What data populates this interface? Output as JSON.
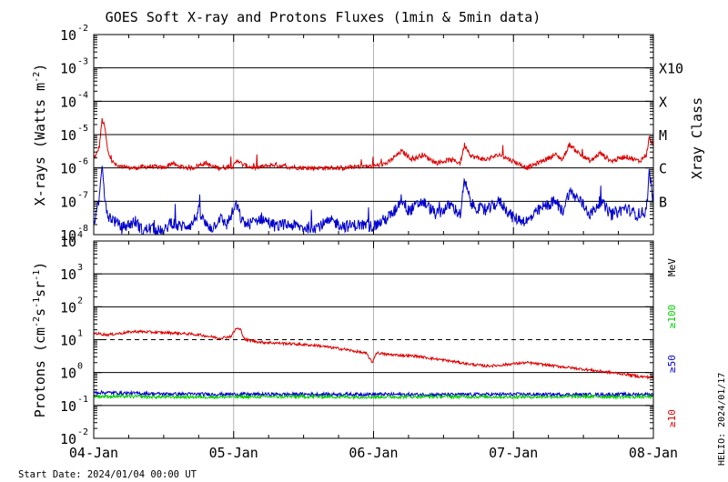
{
  "chart_data": {
    "type": "line",
    "title": "GOES Soft X-ray and Protons Fluxes   (1min & 5min data)",
    "start_date": "Start Date: 2024/01/04 00:00 UT",
    "helio": "HELIO: 2024/01/17",
    "x_ticks": [
      "04-Jan",
      "05-Jan",
      "06-Jan",
      "07-Jan",
      "08-Jan"
    ],
    "xlim_days": [
      0,
      4
    ],
    "panels": [
      {
        "id": "xray",
        "ylabel": "X-rays (Watts m⁻²)",
        "ylabel_main": "X-rays (Watts m",
        "ylabel_exp": "-2",
        "ylabel_close": ")",
        "scale": "log",
        "ylim_exp": [
          -8,
          -2
        ],
        "y_ticks_exp": [
          -8,
          -7,
          -6,
          -5,
          -4,
          -3,
          -2
        ],
        "right_labels": [
          {
            "text": "X10",
            "exp": -3
          },
          {
            "text": "X",
            "exp": -4
          },
          {
            "text": "M",
            "exp": -5
          },
          {
            "text": "C",
            "exp": -6
          },
          {
            "text": "B",
            "exp": -7
          }
        ],
        "right_axis_title": "Xray Class",
        "hlines_exp": [
          -3,
          -4,
          -5,
          -6,
          -7
        ],
        "series": [
          {
            "color": "#dd0000",
            "points": [
              [
                0,
                -5.7
              ],
              [
                0.02,
                -5.6
              ],
              [
                0.04,
                -5.35
              ],
              [
                0.06,
                -4.55
              ],
              [
                0.08,
                -4.8
              ],
              [
                0.1,
                -5.5
              ],
              [
                0.13,
                -5.8
              ],
              [
                0.17,
                -5.95
              ],
              [
                0.22,
                -6.0
              ],
              [
                0.3,
                -6.0
              ],
              [
                0.4,
                -5.95
              ],
              [
                0.5,
                -6.0
              ],
              [
                0.56,
                -5.85
              ],
              [
                0.6,
                -5.95
              ],
              [
                0.7,
                -6.0
              ],
              [
                0.8,
                -5.85
              ],
              [
                0.84,
                -5.95
              ],
              [
                0.9,
                -6.0
              ],
              [
                1.0,
                -5.95
              ],
              [
                1.03,
                -5.75
              ],
              [
                1.06,
                -5.9
              ],
              [
                1.15,
                -6.0
              ],
              [
                1.3,
                -5.9
              ],
              [
                1.35,
                -5.95
              ],
              [
                1.5,
                -6.0
              ],
              [
                1.65,
                -6.0
              ],
              [
                1.8,
                -6.0
              ],
              [
                1.9,
                -5.95
              ],
              [
                2.0,
                -5.95
              ],
              [
                2.1,
                -5.85
              ],
              [
                2.2,
                -5.5
              ],
              [
                2.28,
                -5.75
              ],
              [
                2.35,
                -5.6
              ],
              [
                2.45,
                -5.85
              ],
              [
                2.55,
                -5.75
              ],
              [
                2.62,
                -5.85
              ],
              [
                2.65,
                -5.3
              ],
              [
                2.7,
                -5.65
              ],
              [
                2.8,
                -5.75
              ],
              [
                2.9,
                -5.6
              ],
              [
                3.0,
                -5.8
              ],
              [
                3.1,
                -6.0
              ],
              [
                3.2,
                -5.8
              ],
              [
                3.3,
                -5.6
              ],
              [
                3.35,
                -5.75
              ],
              [
                3.4,
                -5.3
              ],
              [
                3.48,
                -5.6
              ],
              [
                3.55,
                -5.8
              ],
              [
                3.62,
                -5.55
              ],
              [
                3.7,
                -5.8
              ],
              [
                3.8,
                -5.65
              ],
              [
                3.9,
                -5.8
              ],
              [
                3.95,
                -5.6
              ],
              [
                3.97,
                -5.1
              ],
              [
                4.0,
                -5.35
              ]
            ]
          },
          {
            "color": "#0000cc",
            "points": [
              [
                0,
                -7.6
              ],
              [
                0.02,
                -7.4
              ],
              [
                0.04,
                -6.9
              ],
              [
                0.06,
                -5.8
              ],
              [
                0.08,
                -6.9
              ],
              [
                0.1,
                -7.4
              ],
              [
                0.15,
                -7.6
              ],
              [
                0.2,
                -7.8
              ],
              [
                0.25,
                -7.7
              ],
              [
                0.3,
                -7.6
              ],
              [
                0.35,
                -7.9
              ],
              [
                0.4,
                -7.8
              ],
              [
                0.45,
                -7.85
              ],
              [
                0.5,
                -7.95
              ],
              [
                0.55,
                -7.6
              ],
              [
                0.6,
                -7.75
              ],
              [
                0.7,
                -7.7
              ],
              [
                0.75,
                -7.3
              ],
              [
                0.8,
                -7.7
              ],
              [
                0.85,
                -7.8
              ],
              [
                0.9,
                -7.5
              ],
              [
                0.95,
                -7.7
              ],
              [
                1.02,
                -7.1
              ],
              [
                1.06,
                -7.6
              ],
              [
                1.1,
                -7.7
              ],
              [
                1.2,
                -7.5
              ],
              [
                1.3,
                -7.75
              ],
              [
                1.4,
                -7.7
              ],
              [
                1.5,
                -7.8
              ],
              [
                1.6,
                -7.75
              ],
              [
                1.7,
                -7.6
              ],
              [
                1.8,
                -7.75
              ],
              [
                1.9,
                -7.7
              ],
              [
                2.0,
                -7.75
              ],
              [
                2.1,
                -7.5
              ],
              [
                2.15,
                -7.3
              ],
              [
                2.2,
                -6.9
              ],
              [
                2.25,
                -7.3
              ],
              [
                2.35,
                -7.0
              ],
              [
                2.45,
                -7.4
              ],
              [
                2.55,
                -7.1
              ],
              [
                2.62,
                -7.4
              ],
              [
                2.65,
                -6.4
              ],
              [
                2.7,
                -7.1
              ],
              [
                2.8,
                -7.3
              ],
              [
                2.9,
                -7.0
              ],
              [
                3.0,
                -7.5
              ],
              [
                3.1,
                -7.6
              ],
              [
                3.2,
                -7.2
              ],
              [
                3.3,
                -7.0
              ],
              [
                3.35,
                -7.3
              ],
              [
                3.4,
                -6.7
              ],
              [
                3.48,
                -7.0
              ],
              [
                3.55,
                -7.4
              ],
              [
                3.62,
                -7.0
              ],
              [
                3.7,
                -7.4
              ],
              [
                3.8,
                -7.2
              ],
              [
                3.88,
                -7.4
              ],
              [
                3.95,
                -7.3
              ],
              [
                3.97,
                -6.1
              ],
              [
                4.0,
                -7.0
              ]
            ]
          }
        ]
      },
      {
        "id": "protons",
        "ylabel_main": "Protons (cm",
        "ylabel_exp1": "-2",
        "ylabel_mid": "s",
        "ylabel_exp2": "-1",
        "ylabel_mid2": "sr",
        "ylabel_exp3": "-1",
        "ylabel_close": ")",
        "scale": "log",
        "ylim_exp": [
          -2,
          4
        ],
        "y_ticks_exp": [
          -2,
          -1,
          0,
          1,
          2,
          3,
          4
        ],
        "hlines_exp": [
          3,
          2,
          0,
          -1
        ],
        "threshold_exp": 1,
        "legend": [
          {
            "text": "MeV",
            "color": "#000000"
          },
          {
            "text": "≥100",
            "color": "#00cc00"
          },
          {
            "text": "≥50",
            "color": "#0000cc"
          },
          {
            "text": "≥10",
            "color": "#dd0000"
          }
        ],
        "series": [
          {
            "name": "≥10",
            "color": "#dd0000",
            "points": [
              [
                0,
                1.2
              ],
              [
                0.1,
                1.15
              ],
              [
                0.2,
                1.2
              ],
              [
                0.3,
                1.25
              ],
              [
                0.45,
                1.22
              ],
              [
                0.6,
                1.2
              ],
              [
                0.75,
                1.15
              ],
              [
                0.9,
                1.05
              ],
              [
                0.98,
                1.1
              ],
              [
                1.02,
                1.35
              ],
              [
                1.05,
                1.3
              ],
              [
                1.08,
                1.0
              ],
              [
                1.2,
                0.92
              ],
              [
                1.4,
                0.88
              ],
              [
                1.6,
                0.82
              ],
              [
                1.8,
                0.7
              ],
              [
                1.95,
                0.58
              ],
              [
                1.99,
                0.3
              ],
              [
                2.02,
                0.6
              ],
              [
                2.1,
                0.55
              ],
              [
                2.3,
                0.5
              ],
              [
                2.5,
                0.38
              ],
              [
                2.7,
                0.25
              ],
              [
                2.8,
                0.2
              ],
              [
                2.9,
                0.22
              ],
              [
                3.0,
                0.27
              ],
              [
                3.1,
                0.3
              ],
              [
                3.2,
                0.25
              ],
              [
                3.4,
                0.15
              ],
              [
                3.6,
                0.05
              ],
              [
                3.8,
                -0.05
              ],
              [
                3.9,
                -0.12
              ],
              [
                4.0,
                -0.15
              ]
            ]
          },
          {
            "name": "≥50",
            "color": "#0000cc",
            "points": [
              [
                0,
                -0.6
              ],
              [
                0.5,
                -0.65
              ],
              [
                1.0,
                -0.66
              ],
              [
                1.5,
                -0.66
              ],
              [
                2.0,
                -0.66
              ],
              [
                2.5,
                -0.67
              ],
              [
                3.0,
                -0.66
              ],
              [
                3.5,
                -0.67
              ],
              [
                4.0,
                -0.66
              ]
            ]
          },
          {
            "name": "≥100",
            "color": "#00cc00",
            "points": [
              [
                0,
                -0.72
              ],
              [
                0.5,
                -0.74
              ],
              [
                1.0,
                -0.74
              ],
              [
                1.5,
                -0.73
              ],
              [
                2.0,
                -0.74
              ],
              [
                2.5,
                -0.73
              ],
              [
                3.0,
                -0.74
              ],
              [
                3.5,
                -0.73
              ],
              [
                4.0,
                -0.74
              ]
            ]
          }
        ]
      }
    ]
  }
}
